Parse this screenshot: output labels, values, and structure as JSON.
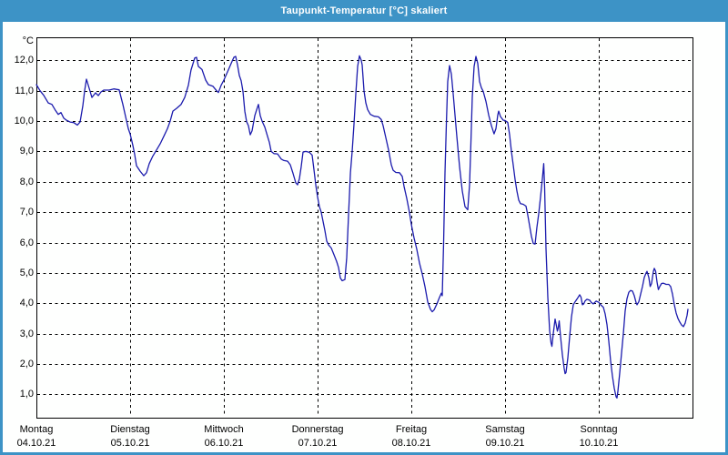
{
  "window": {
    "title": "Taupunkt-Temperatur [°C] skaliert",
    "title_bar_color": "#3d93c6",
    "border_color": "#3d93c6",
    "background_color": "#fefffe"
  },
  "chart_data": {
    "type": "line",
    "title": "Taupunkt-Temperatur [°C] skaliert",
    "y_unit_label": "°C",
    "ylabel": "Taupunkt-Temperatur",
    "y_ticks": [
      12,
      11,
      10,
      9,
      8,
      7,
      6,
      5,
      4,
      3,
      2,
      1
    ],
    "y_tick_labels": [
      "12,0",
      "11,0",
      "10,0",
      "9,0",
      "8,0",
      "7,0",
      "6,0",
      "5,0",
      "4,0",
      "3,0",
      "2,0",
      "1,0"
    ],
    "ylim": [
      0.23,
      12.76
    ],
    "x_range_days": [
      0,
      7
    ],
    "grid": "dashed",
    "grid_color": "#000000",
    "line_color": "#1b1bad",
    "x_days": [
      {
        "weekday": "Montag",
        "date": "04.10.21"
      },
      {
        "weekday": "Dienstag",
        "date": "05.10.21"
      },
      {
        "weekday": "Mittwoch",
        "date": "06.10.21"
      },
      {
        "weekday": "Donnerstag",
        "date": "07.10.21"
      },
      {
        "weekday": "Freitag",
        "date": "08.10.21"
      },
      {
        "weekday": "Samstag",
        "date": "09.10.21"
      },
      {
        "weekday": "Sonntag",
        "date": "10.10.21"
      }
    ],
    "series": [
      {
        "name": "Taupunkt [°C]",
        "points": [
          [
            0.0,
            11.2
          ],
          [
            0.039,
            11.0
          ],
          [
            0.078,
            10.85
          ],
          [
            0.126,
            10.6
          ],
          [
            0.165,
            10.55
          ],
          [
            0.204,
            10.35
          ],
          [
            0.233,
            10.22
          ],
          [
            0.262,
            10.28
          ],
          [
            0.291,
            10.1
          ],
          [
            0.32,
            10.03
          ],
          [
            0.359,
            9.97
          ],
          [
            0.398,
            9.95
          ],
          [
            0.437,
            9.87
          ],
          [
            0.466,
            9.97
          ],
          [
            0.495,
            10.5
          ],
          [
            0.515,
            11.0
          ],
          [
            0.534,
            11.38
          ],
          [
            0.563,
            11.08
          ],
          [
            0.592,
            10.78
          ],
          [
            0.631,
            10.93
          ],
          [
            0.66,
            10.84
          ],
          [
            0.689,
            10.96
          ],
          [
            0.718,
            11.02
          ],
          [
            0.777,
            11.02
          ],
          [
            0.825,
            11.06
          ],
          [
            0.883,
            11.03
          ],
          [
            0.922,
            10.55
          ],
          [
            0.951,
            10.15
          ],
          [
            0.981,
            9.75
          ],
          [
            1.0,
            9.58
          ],
          [
            1.029,
            9.2
          ],
          [
            1.049,
            8.9
          ],
          [
            1.068,
            8.53
          ],
          [
            1.107,
            8.35
          ],
          [
            1.146,
            8.2
          ],
          [
            1.175,
            8.3
          ],
          [
            1.204,
            8.6
          ],
          [
            1.243,
            8.85
          ],
          [
            1.282,
            9.05
          ],
          [
            1.32,
            9.25
          ],
          [
            1.359,
            9.5
          ],
          [
            1.398,
            9.75
          ],
          [
            1.427,
            10.0
          ],
          [
            1.456,
            10.33
          ],
          [
            1.495,
            10.42
          ],
          [
            1.544,
            10.55
          ],
          [
            1.583,
            10.78
          ],
          [
            1.621,
            11.18
          ],
          [
            1.65,
            11.68
          ],
          [
            1.689,
            12.08
          ],
          [
            1.709,
            12.1
          ],
          [
            1.728,
            11.8
          ],
          [
            1.767,
            11.7
          ],
          [
            1.806,
            11.35
          ],
          [
            1.835,
            11.2
          ],
          [
            1.883,
            11.15
          ],
          [
            1.922,
            11.0
          ],
          [
            1.942,
            10.94
          ],
          [
            1.971,
            11.18
          ],
          [
            2.0,
            11.35
          ],
          [
            2.039,
            11.62
          ],
          [
            2.078,
            11.9
          ],
          [
            2.107,
            12.1
          ],
          [
            2.126,
            12.13
          ],
          [
            2.146,
            11.85
          ],
          [
            2.165,
            11.5
          ],
          [
            2.184,
            11.33
          ],
          [
            2.204,
            10.98
          ],
          [
            2.223,
            10.33
          ],
          [
            2.243,
            9.98
          ],
          [
            2.262,
            9.85
          ],
          [
            2.282,
            9.55
          ],
          [
            2.301,
            9.68
          ],
          [
            2.33,
            10.18
          ],
          [
            2.35,
            10.38
          ],
          [
            2.369,
            10.55
          ],
          [
            2.388,
            10.18
          ],
          [
            2.408,
            10.0
          ],
          [
            2.437,
            9.8
          ],
          [
            2.466,
            9.5
          ],
          [
            2.485,
            9.3
          ],
          [
            2.505,
            9.0
          ],
          [
            2.534,
            8.93
          ],
          [
            2.573,
            8.92
          ],
          [
            2.612,
            8.75
          ],
          [
            2.641,
            8.7
          ],
          [
            2.68,
            8.68
          ],
          [
            2.709,
            8.56
          ],
          [
            2.738,
            8.28
          ],
          [
            2.767,
            7.97
          ],
          [
            2.786,
            7.9
          ],
          [
            2.806,
            8.1
          ],
          [
            2.825,
            8.5
          ],
          [
            2.845,
            8.98
          ],
          [
            2.874,
            9.0
          ],
          [
            2.913,
            8.97
          ],
          [
            2.942,
            8.88
          ],
          [
            2.961,
            8.4
          ],
          [
            2.981,
            7.9
          ],
          [
            3.0,
            7.5
          ],
          [
            3.019,
            7.18
          ],
          [
            3.039,
            7.0
          ],
          [
            3.058,
            6.7
          ],
          [
            3.078,
            6.4
          ],
          [
            3.097,
            6.05
          ],
          [
            3.117,
            5.92
          ],
          [
            3.146,
            5.82
          ],
          [
            3.175,
            5.6
          ],
          [
            3.204,
            5.37
          ],
          [
            3.223,
            5.18
          ],
          [
            3.243,
            4.83
          ],
          [
            3.262,
            4.74
          ],
          [
            3.291,
            4.78
          ],
          [
            3.311,
            5.5
          ],
          [
            3.33,
            6.9
          ],
          [
            3.35,
            8.3
          ],
          [
            3.369,
            9.0
          ],
          [
            3.388,
            9.9
          ],
          [
            3.408,
            10.9
          ],
          [
            3.427,
            11.8
          ],
          [
            3.447,
            12.15
          ],
          [
            3.466,
            12.0
          ],
          [
            3.476,
            11.85
          ],
          [
            3.495,
            11.0
          ],
          [
            3.515,
            10.6
          ],
          [
            3.534,
            10.38
          ],
          [
            3.563,
            10.22
          ],
          [
            3.602,
            10.16
          ],
          [
            3.65,
            10.14
          ],
          [
            3.68,
            10.05
          ],
          [
            3.699,
            9.85
          ],
          [
            3.728,
            9.45
          ],
          [
            3.757,
            9.05
          ],
          [
            3.786,
            8.56
          ],
          [
            3.806,
            8.38
          ],
          [
            3.835,
            8.31
          ],
          [
            3.874,
            8.3
          ],
          [
            3.903,
            8.18
          ],
          [
            3.922,
            7.85
          ],
          [
            3.951,
            7.45
          ],
          [
            3.981,
            6.98
          ],
          [
            4.0,
            6.6
          ],
          [
            4.029,
            6.15
          ],
          [
            4.058,
            5.78
          ],
          [
            4.087,
            5.32
          ],
          [
            4.117,
            4.95
          ],
          [
            4.146,
            4.55
          ],
          [
            4.175,
            4.05
          ],
          [
            4.204,
            3.8
          ],
          [
            4.223,
            3.72
          ],
          [
            4.243,
            3.78
          ],
          [
            4.272,
            3.97
          ],
          [
            4.301,
            4.2
          ],
          [
            4.32,
            4.33
          ],
          [
            4.33,
            4.25
          ],
          [
            4.345,
            6.0
          ],
          [
            4.359,
            8.3
          ],
          [
            4.374,
            9.9
          ],
          [
            4.388,
            11.3
          ],
          [
            4.408,
            11.83
          ],
          [
            4.427,
            11.55
          ],
          [
            4.447,
            10.9
          ],
          [
            4.466,
            10.2
          ],
          [
            4.485,
            9.5
          ],
          [
            4.515,
            8.5
          ],
          [
            4.544,
            7.7
          ],
          [
            4.573,
            7.18
          ],
          [
            4.602,
            7.08
          ],
          [
            4.621,
            7.9
          ],
          [
            4.636,
            9.3
          ],
          [
            4.65,
            10.8
          ],
          [
            4.67,
            11.8
          ],
          [
            4.689,
            12.13
          ],
          [
            4.709,
            11.9
          ],
          [
            4.728,
            11.3
          ],
          [
            4.748,
            11.1
          ],
          [
            4.767,
            10.98
          ],
          [
            4.796,
            10.65
          ],
          [
            4.825,
            10.2
          ],
          [
            4.854,
            9.85
          ],
          [
            4.883,
            9.58
          ],
          [
            4.903,
            9.75
          ],
          [
            4.922,
            10.2
          ],
          [
            4.932,
            10.33
          ],
          [
            4.951,
            10.15
          ],
          [
            4.981,
            10.03
          ],
          [
            5.0,
            10.02
          ],
          [
            5.029,
            9.95
          ],
          [
            5.049,
            9.55
          ],
          [
            5.068,
            9.0
          ],
          [
            5.087,
            8.55
          ],
          [
            5.107,
            8.08
          ],
          [
            5.126,
            7.7
          ],
          [
            5.146,
            7.4
          ],
          [
            5.165,
            7.28
          ],
          [
            5.194,
            7.26
          ],
          [
            5.223,
            7.2
          ],
          [
            5.243,
            6.9
          ],
          [
            5.262,
            6.55
          ],
          [
            5.282,
            6.2
          ],
          [
            5.301,
            5.97
          ],
          [
            5.32,
            5.95
          ],
          [
            5.34,
            6.5
          ],
          [
            5.359,
            6.95
          ],
          [
            5.379,
            7.5
          ],
          [
            5.398,
            8.1
          ],
          [
            5.413,
            8.6
          ],
          [
            5.422,
            7.8
          ],
          [
            5.437,
            5.8
          ],
          [
            5.456,
            4.2
          ],
          [
            5.476,
            3.1
          ],
          [
            5.49,
            2.7
          ],
          [
            5.5,
            2.58
          ],
          [
            5.515,
            3.0
          ],
          [
            5.534,
            3.48
          ],
          [
            5.549,
            3.25
          ],
          [
            5.558,
            3.08
          ],
          [
            5.568,
            3.2
          ],
          [
            5.578,
            3.42
          ],
          [
            5.592,
            2.9
          ],
          [
            5.612,
            2.3
          ],
          [
            5.631,
            1.85
          ],
          [
            5.641,
            1.68
          ],
          [
            5.65,
            1.72
          ],
          [
            5.67,
            2.2
          ],
          [
            5.689,
            2.9
          ],
          [
            5.709,
            3.55
          ],
          [
            5.728,
            3.95
          ],
          [
            5.748,
            4.05
          ],
          [
            5.777,
            4.18
          ],
          [
            5.796,
            4.28
          ],
          [
            5.811,
            4.2
          ],
          [
            5.825,
            3.95
          ],
          [
            5.84,
            3.98
          ],
          [
            5.854,
            4.08
          ],
          [
            5.874,
            4.13
          ],
          [
            5.903,
            4.1
          ],
          [
            5.922,
            4.02
          ],
          [
            5.942,
            3.98
          ],
          [
            5.971,
            4.07
          ],
          [
            6.0,
            4.03
          ],
          [
            6.019,
            3.95
          ],
          [
            6.049,
            3.87
          ],
          [
            6.068,
            3.65
          ],
          [
            6.087,
            3.3
          ],
          [
            6.107,
            2.75
          ],
          [
            6.126,
            2.1
          ],
          [
            6.146,
            1.6
          ],
          [
            6.165,
            1.2
          ],
          [
            6.184,
            0.92
          ],
          [
            6.194,
            0.88
          ],
          [
            6.204,
            1.1
          ],
          [
            6.223,
            1.7
          ],
          [
            6.243,
            2.35
          ],
          [
            6.262,
            3.0
          ],
          [
            6.282,
            3.75
          ],
          [
            6.301,
            4.15
          ],
          [
            6.32,
            4.36
          ],
          [
            6.34,
            4.42
          ],
          [
            6.359,
            4.4
          ],
          [
            6.379,
            4.25
          ],
          [
            6.398,
            4.02
          ],
          [
            6.408,
            3.95
          ],
          [
            6.427,
            4.05
          ],
          [
            6.447,
            4.3
          ],
          [
            6.466,
            4.55
          ],
          [
            6.485,
            4.85
          ],
          [
            6.505,
            5.0
          ],
          [
            6.515,
            5.05
          ],
          [
            6.534,
            4.85
          ],
          [
            6.549,
            4.55
          ],
          [
            6.563,
            4.65
          ],
          [
            6.583,
            5.05
          ],
          [
            6.592,
            5.15
          ],
          [
            6.607,
            5.05
          ],
          [
            6.621,
            4.7
          ],
          [
            6.636,
            4.45
          ],
          [
            6.65,
            4.55
          ],
          [
            6.67,
            4.65
          ],
          [
            6.689,
            4.66
          ],
          [
            6.718,
            4.62
          ],
          [
            6.747,
            4.62
          ],
          [
            6.767,
            4.55
          ],
          [
            6.786,
            4.3
          ],
          [
            6.806,
            3.95
          ],
          [
            6.825,
            3.68
          ],
          [
            6.845,
            3.5
          ],
          [
            6.864,
            3.38
          ],
          [
            6.884,
            3.28
          ],
          [
            6.903,
            3.23
          ],
          [
            6.922,
            3.35
          ],
          [
            6.942,
            3.6
          ],
          [
            6.951,
            3.8
          ]
        ]
      }
    ]
  }
}
